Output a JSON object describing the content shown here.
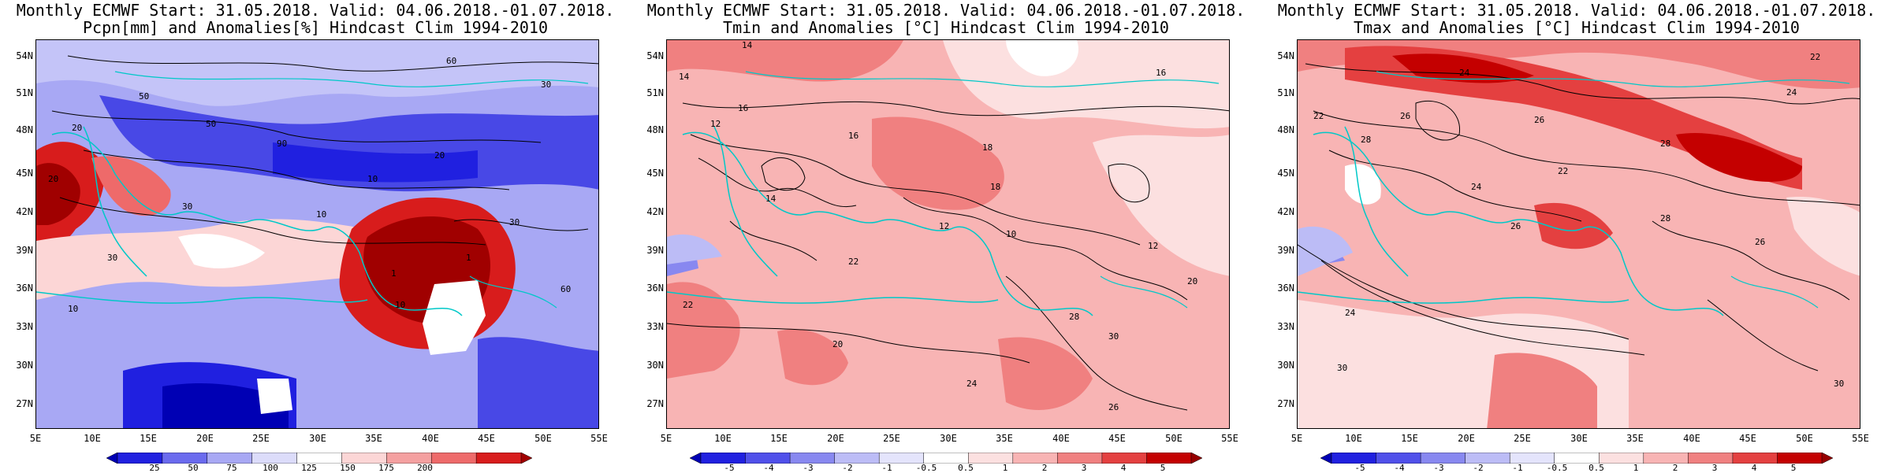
{
  "panels": [
    {
      "title_line1": "Monthly ECMWF Start: 31.05.2018. Valid: 04.06.2018.-01.07.2018.",
      "title_line2": "Pcpn[mm] and Anomalies[%] Hindcast Clim 1994-2010",
      "colorbar_labels": [
        "25",
        "50",
        "75",
        "100",
        "125",
        "150",
        "175",
        "200"
      ],
      "colorbar_colors": [
        "#0000b4",
        "#2020e0",
        "#6a6aee",
        "#a8a8f4",
        "#dcdcfa",
        "#ffffff",
        "#fcd6d6",
        "#f4a0a0",
        "#ee6a6a",
        "#d81c1c",
        "#a00000"
      ]
    },
    {
      "title_line1": "Monthly ECMWF Start: 31.05.2018. Valid: 04.06.2018.-01.07.2018.",
      "title_line2": "Tmin and Anomalies [°C] Hindcast Clim 1994-2010",
      "colorbar_labels": [
        "-5",
        "-4",
        "-3",
        "-2",
        "-1",
        "-0.5",
        "0.5",
        "1",
        "2",
        "3",
        "4",
        "5"
      ],
      "colorbar_colors": [
        "#0000b4",
        "#2020e0",
        "#5050ea",
        "#8888f0",
        "#bcbcf6",
        "#e4e4fc",
        "#ffffff",
        "#fce0e0",
        "#f8b4b4",
        "#f08080",
        "#e44040",
        "#c40000",
        "#960000"
      ]
    },
    {
      "title_line1": "Monthly ECMWF Start: 31.05.2018. Valid: 04.06.2018.-01.07.2018.",
      "title_line2": "Tmax and Anomalies [°C] Hindcast Clim 1994-2010",
      "colorbar_labels": [
        "-5",
        "-4",
        "-3",
        "-2",
        "-1",
        "-0.5",
        "0.5",
        "1",
        "2",
        "3",
        "4",
        "5"
      ],
      "colorbar_colors": [
        "#0000b4",
        "#2020e0",
        "#5050ea",
        "#8888f0",
        "#bcbcf6",
        "#e4e4fc",
        "#ffffff",
        "#fce0e0",
        "#f8b4b4",
        "#f08080",
        "#e44040",
        "#c40000",
        "#960000"
      ]
    }
  ],
  "axes": {
    "lat_labels": [
      "54N",
      "51N",
      "48N",
      "45N",
      "42N",
      "39N",
      "36N",
      "33N",
      "30N",
      "27N"
    ],
    "lon_labels": [
      "5E",
      "10E",
      "15E",
      "20E",
      "25E",
      "30E",
      "35E",
      "40E",
      "45E",
      "50E",
      "55E"
    ]
  },
  "contour_labels": {
    "pcpn": [
      "60",
      "50",
      "30",
      "20",
      "10",
      "90",
      "50",
      "30",
      "20",
      "10",
      "1",
      "10",
      "30",
      "20",
      "10",
      "1",
      "60",
      "30"
    ],
    "tmin": [
      "14",
      "16",
      "14",
      "16",
      "12",
      "18",
      "16",
      "14",
      "12",
      "10",
      "18",
      "22",
      "20",
      "22",
      "24",
      "26",
      "28",
      "30",
      "20",
      "12"
    ],
    "tmax": [
      "22",
      "24",
      "26",
      "24",
      "26",
      "28",
      "22",
      "28",
      "26",
      "24",
      "22",
      "28",
      "26",
      "30",
      "24",
      "30"
    ]
  }
}
